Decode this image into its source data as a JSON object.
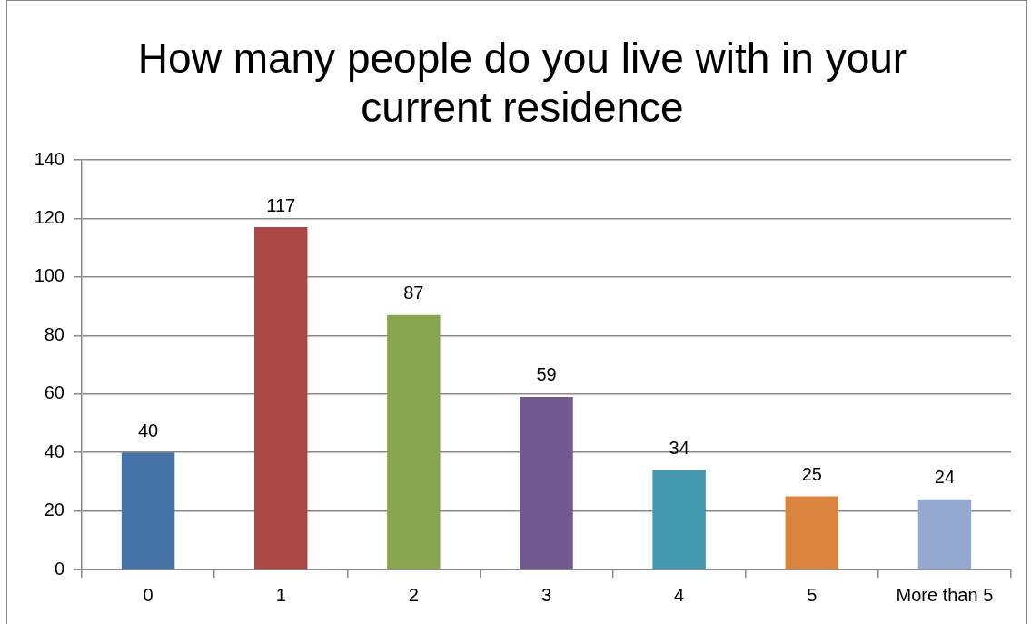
{
  "chart_data": {
    "type": "bar",
    "title": "How many people do you live with in your current residence",
    "categories": [
      "0",
      "1",
      "2",
      "3",
      "4",
      "5",
      "More than 5"
    ],
    "values": [
      40,
      117,
      87,
      59,
      34,
      25,
      24
    ],
    "colors": [
      "#4572a7",
      "#aa4643",
      "#89a54e",
      "#71588f",
      "#4198af",
      "#db843d",
      "#93a9cf"
    ],
    "ylim": [
      0,
      140
    ],
    "yticks": [
      0,
      20,
      40,
      60,
      80,
      100,
      120,
      140
    ],
    "grid": "y",
    "data_labels": true
  }
}
